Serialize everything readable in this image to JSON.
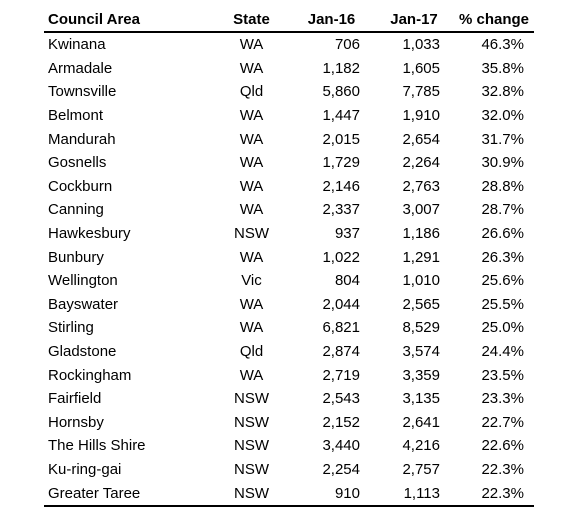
{
  "table": {
    "headers": [
      "Council Area",
      "State",
      "Jan-16",
      "Jan-17",
      "% change"
    ],
    "rows": [
      [
        "Kwinana",
        "WA",
        "706",
        "1,033",
        "46.3%"
      ],
      [
        "Armadale",
        "WA",
        "1,182",
        "1,605",
        "35.8%"
      ],
      [
        "Townsville",
        "Qld",
        "5,860",
        "7,785",
        "32.8%"
      ],
      [
        "Belmont",
        "WA",
        "1,447",
        "1,910",
        "32.0%"
      ],
      [
        "Mandurah",
        "WA",
        "2,015",
        "2,654",
        "31.7%"
      ],
      [
        "Gosnells",
        "WA",
        "1,729",
        "2,264",
        "30.9%"
      ],
      [
        "Cockburn",
        "WA",
        "2,146",
        "2,763",
        "28.8%"
      ],
      [
        "Canning",
        "WA",
        "2,337",
        "3,007",
        "28.7%"
      ],
      [
        "Hawkesbury",
        "NSW",
        "937",
        "1,186",
        "26.6%"
      ],
      [
        "Bunbury",
        "WA",
        "1,022",
        "1,291",
        "26.3%"
      ],
      [
        "Wellington",
        "Vic",
        "804",
        "1,010",
        "25.6%"
      ],
      [
        "Bayswater",
        "WA",
        "2,044",
        "2,565",
        "25.5%"
      ],
      [
        "Stirling",
        "WA",
        "6,821",
        "8,529",
        "25.0%"
      ],
      [
        "Gladstone",
        "Qld",
        "2,874",
        "3,574",
        "24.4%"
      ],
      [
        "Rockingham",
        "WA",
        "2,719",
        "3,359",
        "23.5%"
      ],
      [
        "Fairfield",
        "NSW",
        "2,543",
        "3,135",
        "23.3%"
      ],
      [
        "Hornsby",
        "NSW",
        "2,152",
        "2,641",
        "22.7%"
      ],
      [
        "The Hills Shire",
        "NSW",
        "3,440",
        "4,216",
        "22.6%"
      ],
      [
        "Ku-ring-gai",
        "NSW",
        "2,254",
        "2,757",
        "22.3%"
      ],
      [
        "Greater Taree",
        "NSW",
        "910",
        "1,113",
        "22.3%"
      ]
    ]
  }
}
